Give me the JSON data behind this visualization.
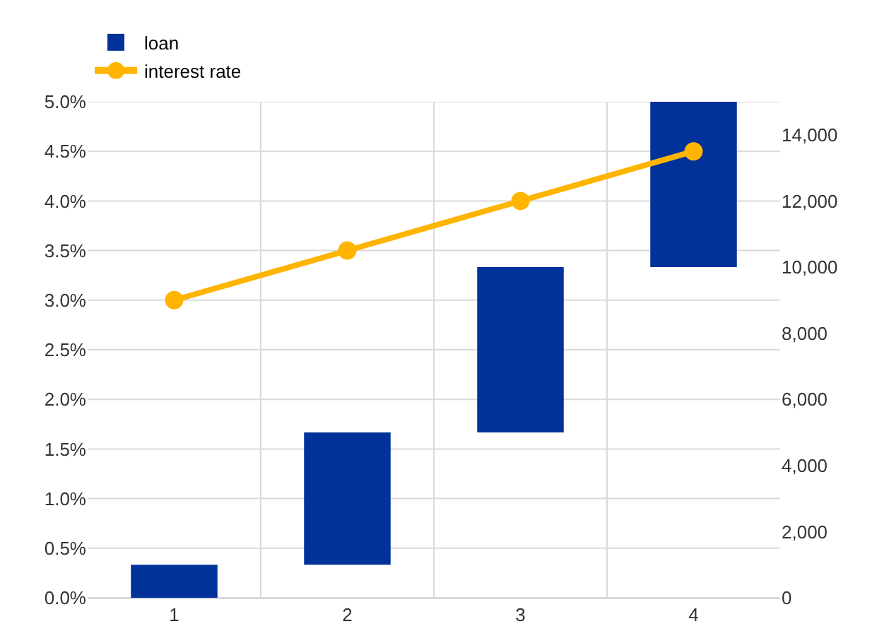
{
  "chart_data": {
    "type": "bar",
    "categories": [
      "1",
      "2",
      "3",
      "4"
    ],
    "series": [
      {
        "name": "loan",
        "axis": "y2",
        "color": "#003299",
        "base": [
          0,
          1000,
          5000,
          10000
        ],
        "values": [
          1000,
          4000,
          5000,
          5000
        ]
      },
      {
        "name": "interest rate",
        "type": "line",
        "color": "#ffb400",
        "marker": "circle",
        "values": [
          3.0,
          3.5,
          4.0,
          4.5
        ]
      }
    ],
    "ylim": [
      0,
      5
    ],
    "yticks": [
      {
        "value": 0,
        "label": "0.0%"
      },
      {
        "value": 0.5,
        "label": "0.5%"
      },
      {
        "value": 1,
        "label": "1.0%"
      },
      {
        "value": 1.5,
        "label": "1.5%"
      },
      {
        "value": 2,
        "label": "2.0%"
      },
      {
        "value": 2.5,
        "label": "2.5%"
      },
      {
        "value": 3,
        "label": "3.0%"
      },
      {
        "value": 3.5,
        "label": "3.5%"
      },
      {
        "value": 4,
        "label": "4.0%"
      },
      {
        "value": 4.5,
        "label": "4.5%"
      },
      {
        "value": 5,
        "label": "5.0%"
      }
    ],
    "y2lim": [
      0,
      15000
    ],
    "y2ticks": [
      {
        "value": 0,
        "label": "0"
      },
      {
        "value": 2000,
        "label": "2,000"
      },
      {
        "value": 4000,
        "label": "4,000"
      },
      {
        "value": 6000,
        "label": "6,000"
      },
      {
        "value": 8000,
        "label": "8,000"
      },
      {
        "value": 10000,
        "label": "10,000"
      },
      {
        "value": 12000,
        "label": "12,000"
      },
      {
        "value": 14000,
        "label": "14,000"
      }
    ],
    "grid": true,
    "legend": "top left"
  }
}
